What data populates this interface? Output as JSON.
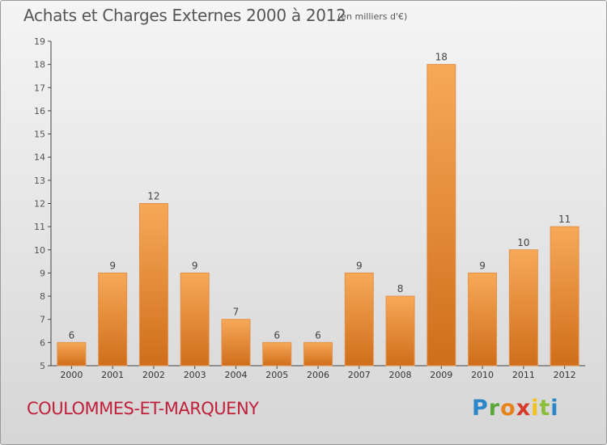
{
  "header": {
    "title": "Achats et Charges Externes 2000 à 2012",
    "subtitle": "(en milliers d'€)"
  },
  "footer": {
    "town": "COULOMMES-ET-MARQUENY",
    "brand": "Proxiti"
  },
  "colors": {
    "bar_top": "#f7a958",
    "bar_bottom": "#cf6e1b",
    "town_text": "#c0203a",
    "axis": "#555555"
  },
  "chart_data": {
    "type": "bar",
    "title": "Achats et Charges Externes 2000 à 2012",
    "subtitle": "(en milliers d'€)",
    "categories": [
      "2000",
      "2001",
      "2002",
      "2003",
      "2004",
      "2005",
      "2006",
      "2007",
      "2008",
      "2009",
      "2010",
      "2011",
      "2012"
    ],
    "values": [
      6,
      9,
      12,
      9,
      7,
      6,
      6,
      9,
      8,
      18,
      9,
      10,
      11
    ],
    "ylim": [
      5,
      19
    ],
    "yticks": [
      5,
      6,
      7,
      8,
      9,
      10,
      11,
      12,
      13,
      14,
      15,
      16,
      17,
      18,
      19
    ],
    "grid": false,
    "data_labels": true
  }
}
